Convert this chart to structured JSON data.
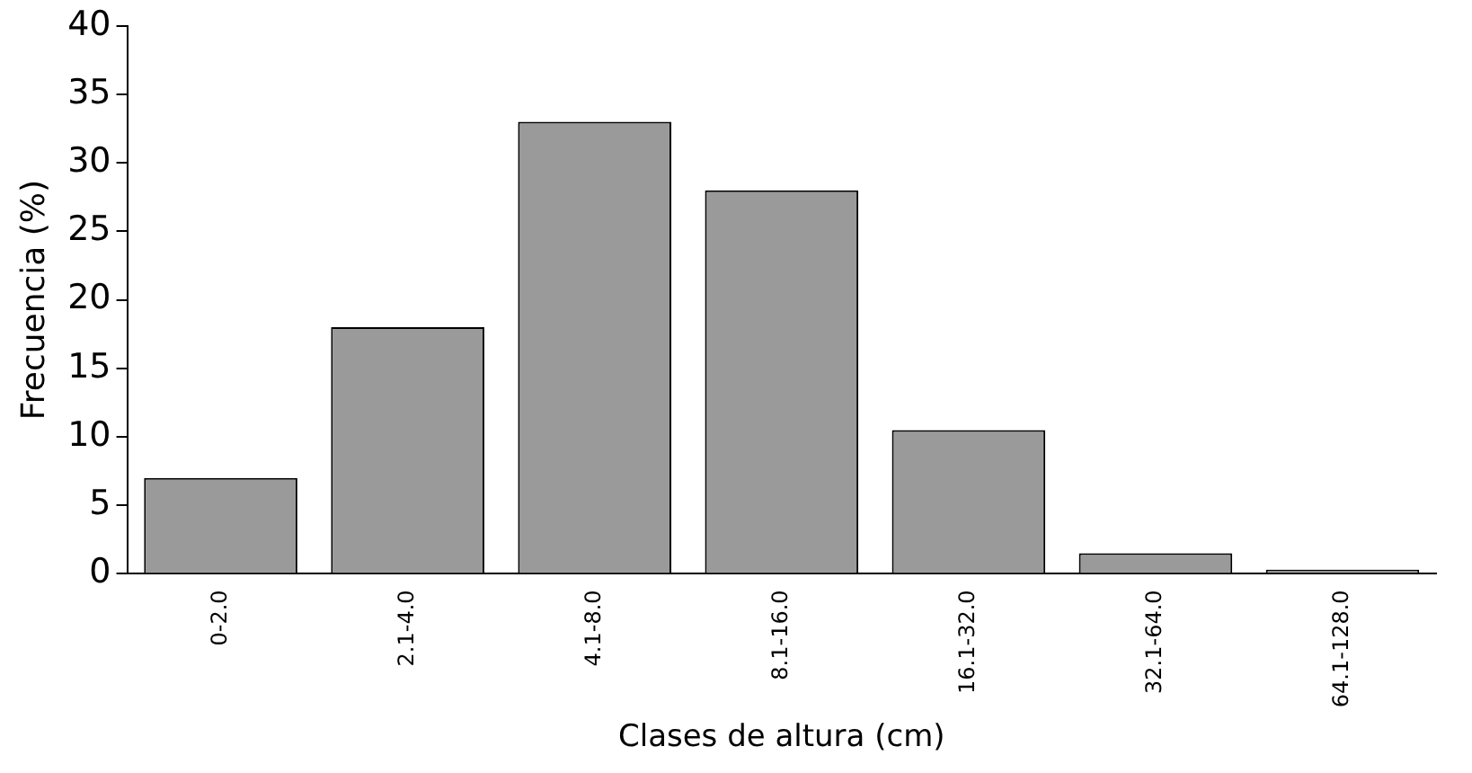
{
  "chart_data": {
    "type": "bar",
    "xlabel": "Clases de altura (cm)",
    "ylabel": "Frecuencia (%)",
    "categories": [
      "0-2.0",
      "2.1-4.0",
      "4.1-8.0",
      "8.1-16.0",
      "16.1-32.0",
      "32.1-64.0",
      "64.1-128.0"
    ],
    "values": [
      7,
      18,
      33,
      28,
      10.5,
      1.5,
      0.3
    ],
    "color": "#9a9a9a",
    "ylim": [
      0,
      40
    ],
    "yticks": [
      0,
      5,
      10,
      15,
      20,
      25,
      30,
      35,
      40
    ],
    "grid": false,
    "legend": false
  }
}
